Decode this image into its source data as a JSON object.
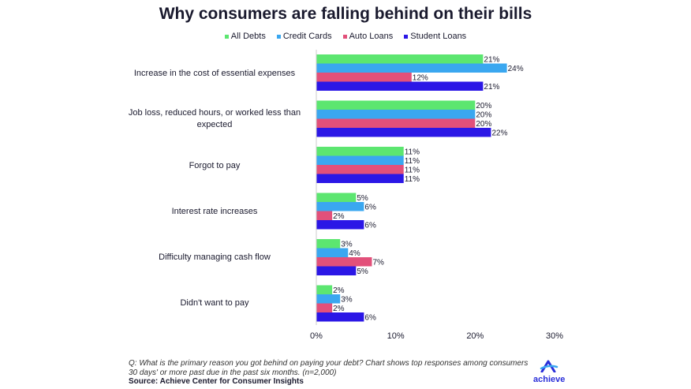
{
  "chart_data": {
    "type": "bar",
    "orientation": "horizontal",
    "title": "Why consumers are falling behind on their bills",
    "categories": [
      "Increase in the cost of essential expenses",
      "Job loss, reduced hours, or worked less than expected",
      "Forgot to pay",
      "Interest rate increases",
      "Difficulty managing cash flow",
      "Didn't want to pay"
    ],
    "series": [
      {
        "name": "All Debts",
        "color": "#5ce670",
        "values": [
          21,
          20,
          11,
          5,
          3,
          2
        ],
        "labels": [
          "21%",
          "20%",
          "11%",
          "5%",
          "3%",
          "2%"
        ]
      },
      {
        "name": "Credit Cards",
        "color": "#3aa7f0",
        "values": [
          24,
          20,
          11,
          6,
          4,
          3
        ],
        "labels": [
          "24%",
          "20%",
          "11%",
          "6%",
          "4%",
          "3%"
        ]
      },
      {
        "name": "Auto Loans",
        "color": "#e2507a",
        "values": [
          12,
          20,
          11,
          2,
          7,
          2
        ],
        "labels": [
          "12%",
          "20%",
          "11%",
          "2%",
          "7%",
          "2%"
        ]
      },
      {
        "name": "Student Loans",
        "color": "#2b17e6",
        "values": [
          21,
          22,
          11,
          6,
          5,
          6
        ],
        "labels": [
          "21%",
          "22%",
          "11%",
          "6%",
          "5%",
          "6%"
        ]
      }
    ],
    "xlim": [
      0,
      30
    ],
    "xticks": [
      "0%",
      "10%",
      "20%",
      "30%"
    ],
    "legend_position": "top-center",
    "grid": false
  },
  "footer": {
    "note": "Q: What is the primary reason you got behind on paying your debt? Chart shows top responses among consumers 30 days' or more past due in the past six months. (n=2,000)",
    "source": "Source: Achieve Center for Consumer Insights"
  },
  "logo": {
    "text": "achieve",
    "color": "#2a2fd9"
  }
}
